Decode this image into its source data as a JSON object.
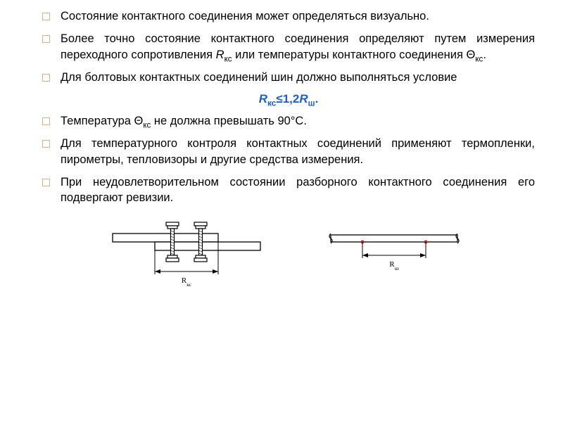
{
  "bullets": [
    {
      "pre": "Состояние контактного соединения может определяться визуально."
    },
    {
      "pre": "Более точно состояние контактного соединения определяют путем измерения переходного сопротивления ",
      "i1": "R",
      "i1sub": "кс",
      "mid": " или температуры контактного соединения Θ",
      "i2sub": "кс",
      "post": "."
    },
    {
      "pre": "Для болтовых контактных соединений шин должно выполняться условие"
    },
    {
      "pre": "Температура Θ",
      "i1sub": "кс",
      "mid": " не должна превышать 90°С."
    },
    {
      "pre": "Для температурного контроля контактных соединений применяют термопленки, пирометры, тепловизоры и другие средства измерения."
    },
    {
      "pre": "При неудовлетворительном состоянии разборного контактного соединения его подвергают ревизии."
    }
  ],
  "formula": {
    "r1": "R",
    "r1sub": "кс",
    "op": "≤1,2",
    "r2": "R",
    "r2sub": "ш",
    "end": "."
  },
  "diagram": {
    "left_label_prefix": "R",
    "left_label_sub": "кс",
    "right_label_prefix": "R",
    "right_label_sub": "ш",
    "stroke": "#000000",
    "fill": "#ffffff",
    "accent": "#cc2020",
    "font_family": "Verdana",
    "label_fontsize": 11
  }
}
